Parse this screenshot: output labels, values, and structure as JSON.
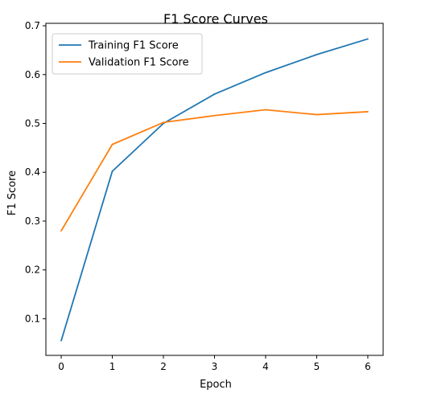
{
  "chart_data": {
    "type": "line",
    "title": "F1 Score Curves",
    "xlabel": "Epoch",
    "ylabel": "F1 Score",
    "x": [
      0,
      1,
      2,
      3,
      4,
      5,
      6
    ],
    "xticks": [
      "0",
      "1",
      "2",
      "3",
      "4",
      "5",
      "6"
    ],
    "yticks": [
      "0.1",
      "0.2",
      "0.3",
      "0.4",
      "0.5",
      "0.6",
      "0.7"
    ],
    "xlim": [
      -0.3,
      6.3
    ],
    "ylim": [
      0.025,
      0.705
    ],
    "grid": false,
    "legend_position": "top-left",
    "series": [
      {
        "name": "Training F1 Score",
        "color": "#1f77b4",
        "values": [
          0.055,
          0.402,
          0.5,
          0.56,
          0.604,
          0.641,
          0.673
        ]
      },
      {
        "name": "Validation F1 Score",
        "color": "#ff7f0e",
        "values": [
          0.28,
          0.457,
          0.502,
          0.516,
          0.528,
          0.518,
          0.524
        ]
      }
    ]
  }
}
